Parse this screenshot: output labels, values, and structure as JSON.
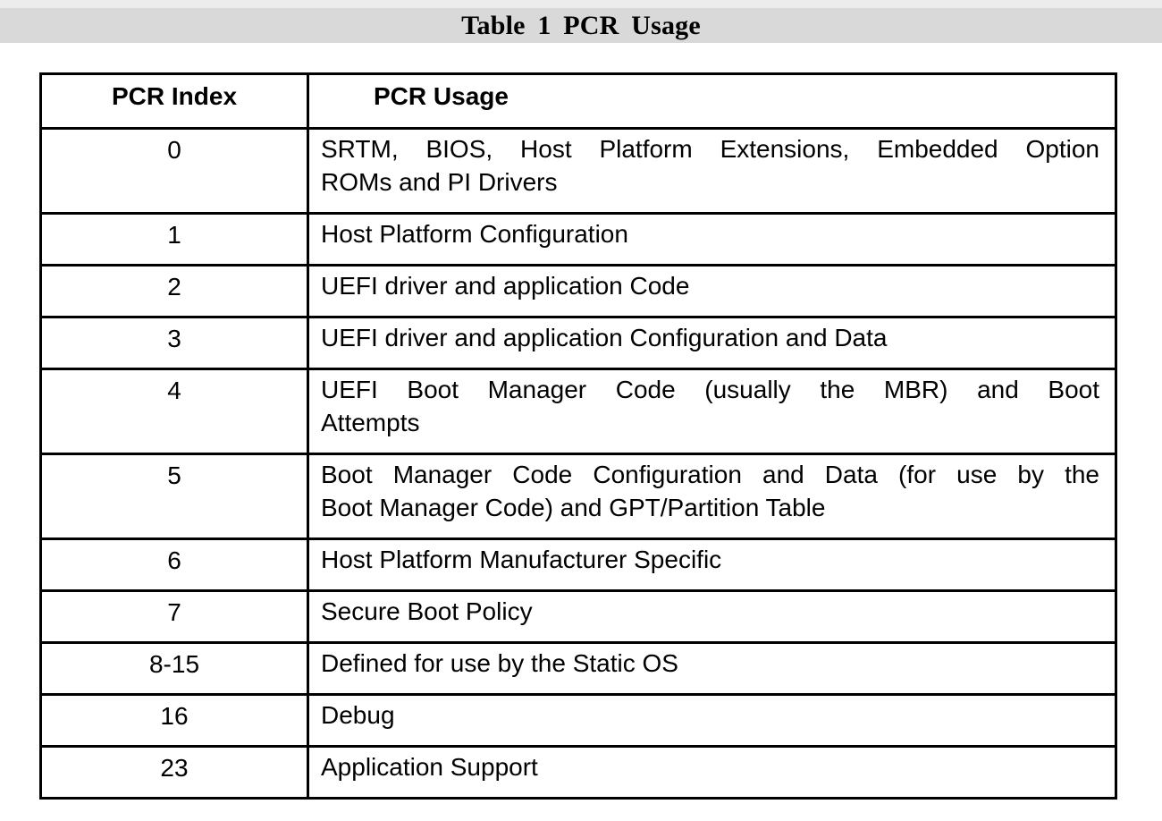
{
  "title": "Table 1 PCR Usage",
  "colors": {
    "caption_band": "#d9d9d9",
    "caption_band_top_strip": "#ececec",
    "border": "#000000",
    "text": "#000000",
    "background": "#ffffff"
  },
  "table": {
    "columns": [
      "PCR Index",
      "PCR Usage"
    ],
    "rows": [
      {
        "index": "0",
        "usage": "SRTM, BIOS, Host Platform Extensions, Embedded Option ROMs and PI Drivers",
        "lines": [
          "SRTM, BIOS, Host Platform Extensions, Embedded Option",
          "ROMs and PI Drivers"
        ]
      },
      {
        "index": "1",
        "usage": "Host Platform Configuration",
        "lines": [
          "Host Platform Configuration"
        ]
      },
      {
        "index": "2",
        "usage": "UEFI driver and application Code",
        "lines": [
          "UEFI driver and application Code"
        ]
      },
      {
        "index": "3",
        "usage": "UEFI driver and application Configuration and Data",
        "lines": [
          "UEFI driver and application Configuration and Data"
        ]
      },
      {
        "index": "4",
        "usage": "UEFI Boot Manager Code (usually the MBR) and Boot Attempts",
        "lines": [
          "UEFI Boot Manager Code (usually the MBR) and Boot",
          "Attempts"
        ]
      },
      {
        "index": "5",
        "usage": "Boot Manager Code Configuration and Data (for use by the Boot Manager Code) and GPT/Partition Table",
        "lines": [
          "Boot Manager Code Configuration and Data (for use by the",
          "Boot Manager Code) and GPT/Partition Table"
        ]
      },
      {
        "index": "6",
        "usage": "Host Platform Manufacturer Specific",
        "lines": [
          "Host Platform Manufacturer Specific"
        ]
      },
      {
        "index": "7",
        "usage": "Secure Boot Policy",
        "lines": [
          "Secure Boot Policy"
        ]
      },
      {
        "index": "8-15",
        "usage": "Defined for use by the Static OS",
        "lines": [
          "Defined for use by the Static OS"
        ]
      },
      {
        "index": "16",
        "usage": "Debug",
        "lines": [
          "Debug"
        ]
      },
      {
        "index": "23",
        "usage": "Application Support",
        "lines": [
          "Application Support"
        ]
      }
    ]
  }
}
